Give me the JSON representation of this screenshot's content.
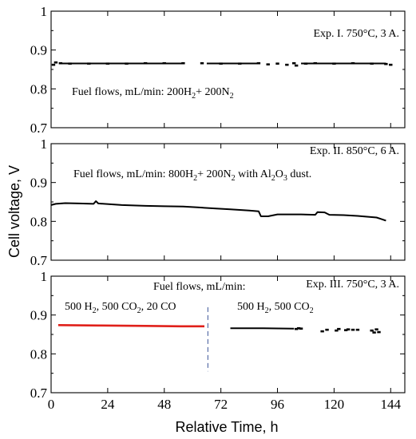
{
  "chart_data": {
    "type": "line",
    "xlabel": "Relative Time, h",
    "ylabel": "Cell voltage, V",
    "xlim": [
      0,
      150
    ],
    "x_ticks": [
      "0",
      "24",
      "48",
      "72",
      "96",
      "120",
      "144"
    ],
    "x_tick_values": [
      0,
      24,
      48,
      72,
      96,
      120,
      144
    ],
    "grid": false,
    "panels": [
      {
        "id": "exp1",
        "ylim": [
          0.7,
          1.0
        ],
        "y_ticks": [
          "0.7",
          "0.8",
          "0.9",
          "1"
        ],
        "y_tick_values": [
          0.7,
          0.8,
          0.9,
          1.0
        ],
        "annotations": [
          {
            "parts": [
              {
                "t": "Exp. I. 750°C, 3 A."
              }
            ]
          },
          {
            "parts": [
              {
                "t": "Fuel flows, mL/min: 200H"
              },
              {
                "t": "2",
                "sub": true
              },
              {
                "t": "+ 200N"
              },
              {
                "t": "2",
                "sub": true
              }
            ]
          }
        ],
        "series": [
          {
            "color": "#000000",
            "style": "markers",
            "points": [
              [
                1,
                0.862
              ],
              [
                2,
                0.868
              ],
              [
                4,
                0.866
              ],
              [
                8,
                0.865
              ],
              [
                16,
                0.865
              ],
              [
                24,
                0.865
              ],
              [
                32,
                0.865
              ],
              [
                40,
                0.866
              ],
              [
                48,
                0.866
              ],
              [
                56,
                0.866
              ],
              [
                64,
                0.866
              ],
              [
                72,
                0.865
              ],
              [
                80,
                0.865
              ],
              [
                88,
                0.866
              ],
              [
                92,
                0.863
              ],
              [
                96,
                0.865
              ],
              [
                100,
                0.862
              ],
              [
                103,
                0.866
              ],
              [
                104,
                0.86
              ],
              [
                108,
                0.865
              ],
              [
                112,
                0.866
              ],
              [
                120,
                0.865
              ],
              [
                128,
                0.866
              ],
              [
                136,
                0.865
              ],
              [
                142,
                0.864
              ],
              [
                144,
                0.862
              ]
            ]
          }
        ]
      },
      {
        "id": "exp2",
        "ylim": [
          0.7,
          1.0
        ],
        "y_ticks": [
          "0.7",
          "0.8",
          "0.9",
          "1"
        ],
        "y_tick_values": [
          0.7,
          0.8,
          0.9,
          1.0
        ],
        "annotations": [
          {
            "parts": [
              {
                "t": "Exp. II. 850°C, 6 A."
              }
            ]
          },
          {
            "parts": [
              {
                "t": "Fuel flows, mL/min: 800H"
              },
              {
                "t": "2",
                "sub": true
              },
              {
                "t": "+ 200N"
              },
              {
                "t": "2",
                "sub": true
              },
              {
                "t": " with  Al"
              },
              {
                "t": "2",
                "sub": true
              },
              {
                "t": "O"
              },
              {
                "t": "3",
                "sub": true
              },
              {
                "t": " dust."
              }
            ]
          }
        ],
        "series": [
          {
            "color": "#000000",
            "style": "line",
            "points": [
              [
                0,
                0.842
              ],
              [
                2,
                0.845
              ],
              [
                6,
                0.847
              ],
              [
                12,
                0.846
              ],
              [
                18,
                0.845
              ],
              [
                19,
                0.852
              ],
              [
                20,
                0.846
              ],
              [
                30,
                0.842
              ],
              [
                40,
                0.84
              ],
              [
                48,
                0.839
              ],
              [
                56,
                0.838
              ],
              [
                62,
                0.836
              ],
              [
                70,
                0.833
              ],
              [
                76,
                0.831
              ],
              [
                84,
                0.828
              ],
              [
                88,
                0.826
              ],
              [
                89,
                0.813
              ],
              [
                92,
                0.813
              ],
              [
                96,
                0.818
              ],
              [
                100,
                0.818
              ],
              [
                106,
                0.818
              ],
              [
                112,
                0.817
              ],
              [
                113,
                0.824
              ],
              [
                116,
                0.823
              ],
              [
                118,
                0.817
              ],
              [
                124,
                0.816
              ],
              [
                130,
                0.814
              ],
              [
                134,
                0.812
              ],
              [
                138,
                0.81
              ],
              [
                140,
                0.806
              ],
              [
                142,
                0.802
              ]
            ]
          }
        ]
      },
      {
        "id": "exp3",
        "ylim": [
          0.7,
          1.0
        ],
        "y_ticks": [
          "0.7",
          "0.8",
          "0.9",
          "1"
        ],
        "y_tick_values": [
          0.7,
          0.8,
          0.9,
          1.0
        ],
        "annotations": [
          {
            "parts": [
              {
                "t": "Fuel flows, mL/min:"
              }
            ]
          },
          {
            "parts": [
              {
                "t": "Exp. III. 750°C, 3 A."
              }
            ]
          },
          {
            "parts": [
              {
                "t": "500 H"
              },
              {
                "t": "2",
                "sub": true
              },
              {
                "t": ", 500 CO"
              },
              {
                "t": "2",
                "sub": true
              },
              {
                "t": ", 20 CO"
              }
            ]
          },
          {
            "parts": [
              {
                "t": "500 H"
              },
              {
                "t": "2",
                "sub": true
              },
              {
                "t": ", 500 CO"
              },
              {
                "t": "2",
                "sub": true
              }
            ]
          }
        ],
        "divider_x": 66.5,
        "series": [
          {
            "color": "#e0201a",
            "style": "line",
            "points": [
              [
                3,
                0.874
              ],
              [
                20,
                0.873
              ],
              [
                40,
                0.872
              ],
              [
                55,
                0.871
              ],
              [
                65,
                0.871
              ]
            ]
          },
          {
            "color": "#000000",
            "style": "line",
            "points": [
              [
                76,
                0.866
              ],
              [
                90,
                0.866
              ],
              [
                103,
                0.865
              ]
            ]
          },
          {
            "color": "#000000",
            "style": "markers",
            "points": [
              [
                104,
                0.864
              ],
              [
                105,
                0.866
              ],
              [
                106,
                0.865
              ],
              [
                115,
                0.858
              ],
              [
                117,
                0.862
              ],
              [
                121,
                0.86
              ],
              [
                122,
                0.864
              ],
              [
                125,
                0.861
              ],
              [
                126,
                0.863
              ],
              [
                128,
                0.862
              ],
              [
                130,
                0.862
              ],
              [
                136,
                0.86
              ],
              [
                137,
                0.855
              ],
              [
                138,
                0.863
              ],
              [
                139,
                0.856
              ]
            ]
          }
        ]
      }
    ]
  }
}
